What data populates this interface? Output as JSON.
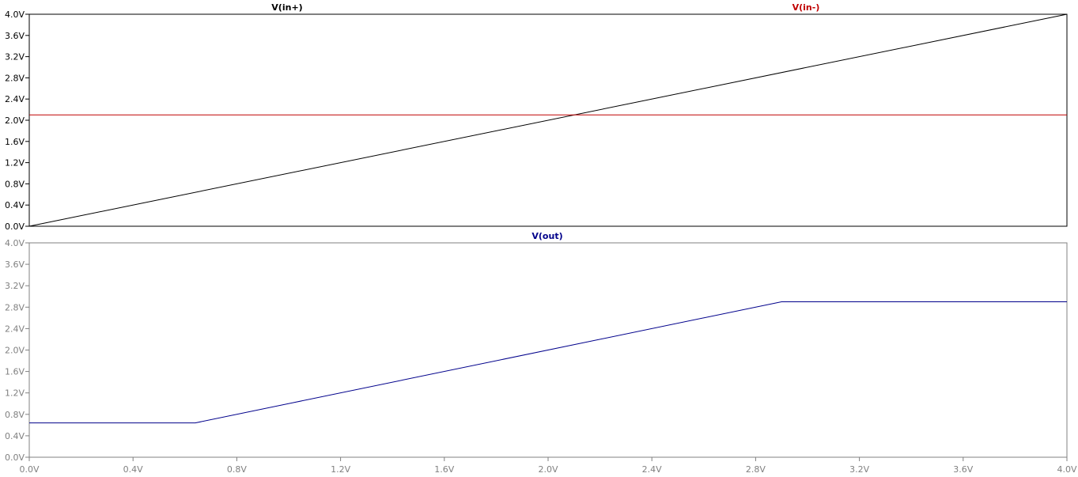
{
  "chart_data": [
    {
      "type": "line",
      "x_ticks": [
        "0.0V",
        "0.4V",
        "0.8V",
        "1.2V",
        "1.6V",
        "2.0V",
        "2.4V",
        "2.8V",
        "3.2V",
        "3.6V",
        "4.0V"
      ],
      "y_ticks": [
        "0.0V",
        "0.4V",
        "0.8V",
        "1.2V",
        "1.6V",
        "2.0V",
        "2.4V",
        "2.8V",
        "3.2V",
        "3.6V",
        "4.0V"
      ],
      "xlim": [
        0,
        4.0
      ],
      "ylim": [
        0,
        4.0
      ],
      "tick_color": "#000000",
      "grid": false,
      "series": [
        {
          "name": "V(in+)",
          "color": "#000000",
          "x": [
            0,
            4.0
          ],
          "y": [
            0,
            4.0
          ]
        },
        {
          "name": "V(in-)",
          "color": "#c00000",
          "x": [
            0,
            4.0
          ],
          "y": [
            2.1,
            2.1
          ]
        }
      ]
    },
    {
      "type": "line",
      "x_ticks": [
        "0.0V",
        "0.4V",
        "0.8V",
        "1.2V",
        "1.6V",
        "2.0V",
        "2.4V",
        "2.8V",
        "3.2V",
        "3.6V",
        "4.0V"
      ],
      "y_ticks": [
        "0.0V",
        "0.4V",
        "0.8V",
        "1.2V",
        "1.6V",
        "2.0V",
        "2.4V",
        "2.8V",
        "3.2V",
        "3.6V",
        "4.0V"
      ],
      "xlim": [
        0,
        4.0
      ],
      "ylim": [
        0,
        4.0
      ],
      "tick_color": "#808080",
      "grid": false,
      "series": [
        {
          "name": "V(out)",
          "color": "#00008b",
          "x": [
            0,
            0.64,
            2.9,
            4.0
          ],
          "y": [
            0.64,
            0.64,
            2.9,
            2.9
          ]
        }
      ]
    }
  ]
}
